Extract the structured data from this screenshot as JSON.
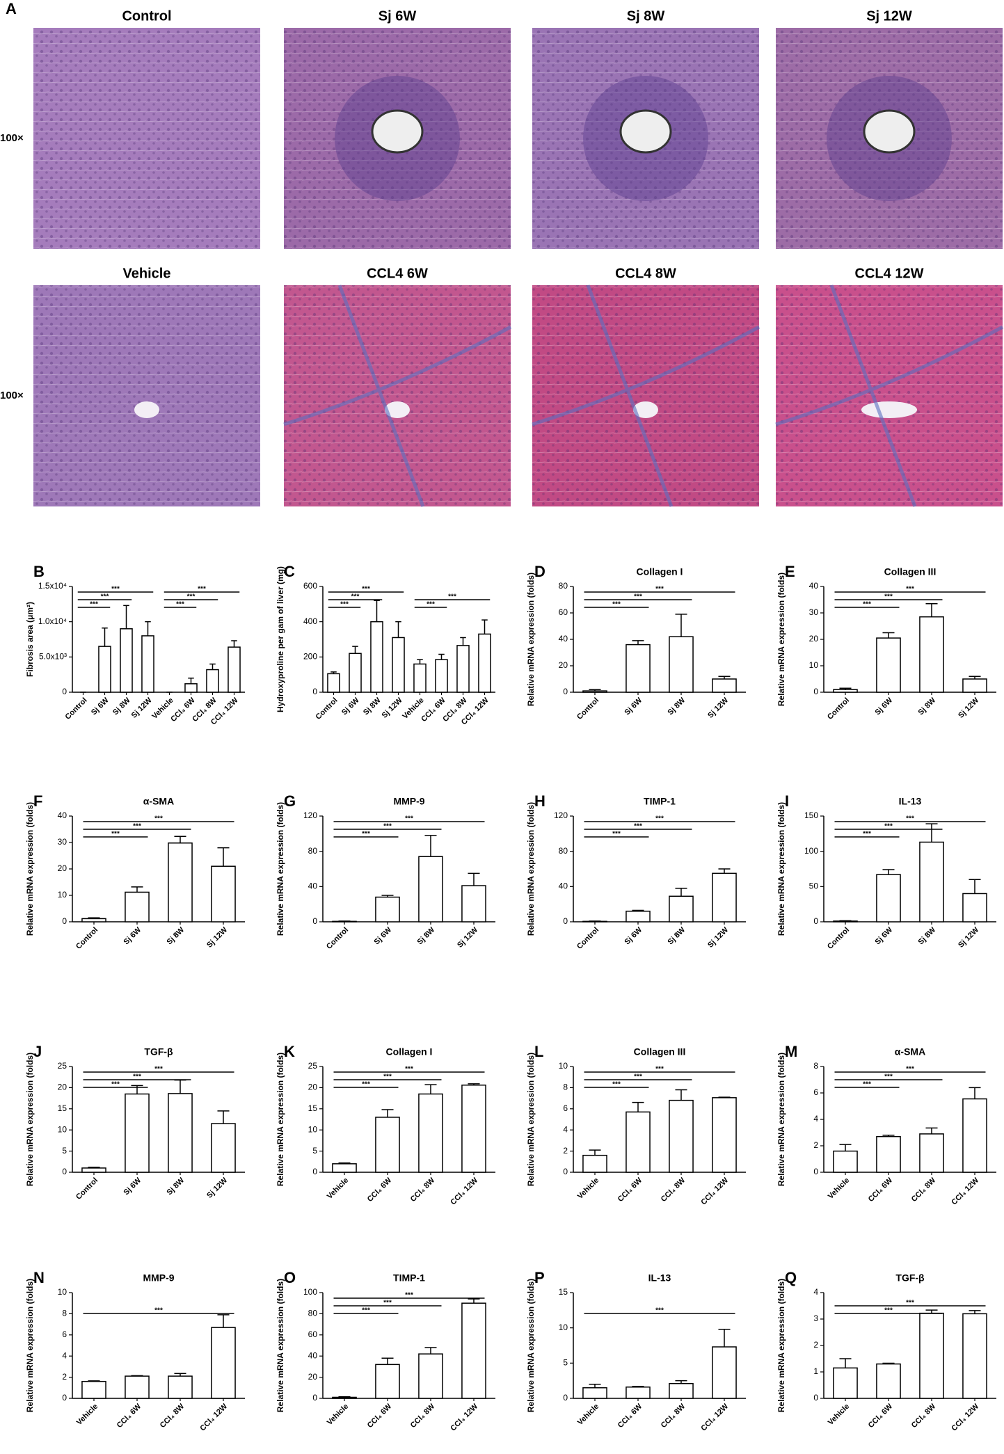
{
  "panel_a": {
    "panel": "A",
    "rows": [
      {
        "magnification": "100×",
        "images": [
          "Control",
          "Sj 6W",
          "Sj 8W",
          "Sj 12W"
        ]
      },
      {
        "magnification": "100×",
        "images": [
          "Vehicle",
          "CCL4 6W",
          "CCL4 8W",
          "CCL4 12W"
        ]
      }
    ]
  },
  "chart_data": [
    {
      "type": "bar",
      "panel": "B",
      "ylabel": "Fibrosis area (μm²)",
      "categories": [
        "Control",
        "Sj 6W",
        "Sj 8W",
        "Sj 12W",
        "Vehicle",
        "CCl₄ 6W",
        "CCl₄ 8W",
        "CCl₄ 12W"
      ],
      "values": [
        0,
        6500,
        9000,
        8000,
        0,
        1200,
        3200,
        6400
      ],
      "errors": [
        0,
        2600,
        3300,
        2000,
        0,
        800,
        800,
        900
      ],
      "ylim": [
        0,
        15000
      ],
      "yticks": [
        0,
        {
          "value": 5000,
          "label": "5.0x10³"
        },
        {
          "value": 10000,
          "label": "1.0x10⁴"
        },
        {
          "value": 15000,
          "label": "1.5x10⁴"
        }
      ],
      "significance": [
        {
          "from": 0,
          "to": 1,
          "label": "***"
        },
        {
          "from": 0,
          "to": 2,
          "label": "***"
        },
        {
          "from": 0,
          "to": 3,
          "label": "***"
        },
        {
          "from": 4,
          "to": 5,
          "label": "***"
        },
        {
          "from": 4,
          "to": 6,
          "label": "***"
        },
        {
          "from": 4,
          "to": 7,
          "label": "***"
        }
      ]
    },
    {
      "type": "bar",
      "panel": "C",
      "ylabel": "Hydroxyproline per gam of liver (mg)",
      "categories": [
        "Control",
        "Sj 6W",
        "Sj 8W",
        "Sj 12W",
        "Vehicle",
        "CCl₄ 6W",
        "CCl₄ 8W",
        "CCl₄ 12W"
      ],
      "values": [
        105,
        220,
        400,
        310,
        160,
        185,
        265,
        330
      ],
      "errors": [
        10,
        40,
        120,
        90,
        25,
        30,
        45,
        80
      ],
      "ylim": [
        0,
        600
      ],
      "yticks": [
        0,
        200,
        400,
        600
      ],
      "significance": [
        {
          "from": 0,
          "to": 1,
          "label": "***"
        },
        {
          "from": 0,
          "to": 2,
          "label": "***"
        },
        {
          "from": 0,
          "to": 3,
          "label": "***"
        },
        {
          "from": 4,
          "to": 5,
          "label": "***"
        },
        {
          "from": 4,
          "to": 7,
          "label": "***"
        }
      ]
    },
    {
      "type": "bar",
      "panel": "D",
      "title": "Collagen I",
      "ylabel": "Relative mRNA expression (folds)",
      "categories": [
        "Control",
        "Sj 6W",
        "Sj 8W",
        "Sj 12W"
      ],
      "values": [
        1,
        36,
        42,
        10
      ],
      "errors": [
        1,
        3,
        17,
        2
      ],
      "ylim": [
        0,
        80
      ],
      "yticks": [
        0,
        20,
        40,
        60,
        80
      ],
      "significance": [
        {
          "from": 0,
          "to": 1,
          "label": "***"
        },
        {
          "from": 0,
          "to": 2,
          "label": "***"
        },
        {
          "from": 0,
          "to": 3,
          "label": "***"
        }
      ]
    },
    {
      "type": "bar",
      "panel": "E",
      "title": "Collagen III",
      "ylabel": "Relative mRNA expression (folds)",
      "categories": [
        "Control",
        "Sj 6W",
        "Sj 8W",
        "Sj 12W"
      ],
      "values": [
        1,
        20.5,
        28.5,
        5
      ],
      "errors": [
        0.5,
        2,
        5,
        1
      ],
      "ylim": [
        0,
        40
      ],
      "yticks": [
        0,
        10,
        20,
        30,
        40
      ],
      "significance": [
        {
          "from": 0,
          "to": 1,
          "label": "***"
        },
        {
          "from": 0,
          "to": 2,
          "label": "***"
        },
        {
          "from": 0,
          "to": 3,
          "label": "***"
        }
      ]
    },
    {
      "type": "bar",
      "panel": "F",
      "title": "α-SMA",
      "ylabel": "Relative mRNA expression (folds)",
      "categories": [
        "Control",
        "Sj 6W",
        "Sj 8W",
        "Sj 12W"
      ],
      "values": [
        1.2,
        11.2,
        29.8,
        21
      ],
      "errors": [
        0.3,
        2,
        2.5,
        7
      ],
      "ylim": [
        0,
        40
      ],
      "yticks": [
        0,
        10,
        20,
        30,
        40
      ],
      "significance": [
        {
          "from": 0,
          "to": 1,
          "label": "***"
        },
        {
          "from": 0,
          "to": 2,
          "label": "***"
        },
        {
          "from": 0,
          "to": 3,
          "label": "***"
        }
      ]
    },
    {
      "type": "bar",
      "panel": "G",
      "title": "MMP-9",
      "ylabel": "Relative mRNA expression (folds)",
      "categories": [
        "Control",
        "Sj 6W",
        "Sj 8W",
        "Sj 12W"
      ],
      "values": [
        0.5,
        28,
        74,
        41
      ],
      "errors": [
        0.3,
        2,
        24,
        14
      ],
      "ylim": [
        0,
        120
      ],
      "yticks": [
        0,
        40,
        80,
        120
      ],
      "significance": [
        {
          "from": 0,
          "to": 1,
          "label": "***"
        },
        {
          "from": 0,
          "to": 2,
          "label": "***"
        },
        {
          "from": 0,
          "to": 3,
          "label": "***"
        }
      ]
    },
    {
      "type": "bar",
      "panel": "H",
      "title": "TIMP-1",
      "ylabel": "Relative mRNA expression (folds)",
      "categories": [
        "Control",
        "Sj 6W",
        "Sj 8W",
        "Sj 12W"
      ],
      "values": [
        0.5,
        12,
        29,
        55
      ],
      "errors": [
        0.3,
        1,
        9,
        5
      ],
      "ylim": [
        0,
        120
      ],
      "yticks": [
        0,
        40,
        80,
        120
      ],
      "significance": [
        {
          "from": 0,
          "to": 1,
          "label": "***"
        },
        {
          "from": 0,
          "to": 2,
          "label": "***"
        },
        {
          "from": 0,
          "to": 3,
          "label": "***"
        }
      ]
    },
    {
      "type": "bar",
      "panel": "I",
      "title": "IL-13",
      "ylabel": "Relative mRNA expression (folds)",
      "categories": [
        "Control",
        "Sj 6W",
        "Sj 8W",
        "Sj 12W"
      ],
      "values": [
        1,
        67,
        113,
        40
      ],
      "errors": [
        0.5,
        7,
        26,
        20
      ],
      "ylim": [
        0,
        150
      ],
      "yticks": [
        0,
        50,
        100,
        150
      ],
      "significance": [
        {
          "from": 0,
          "to": 1,
          "label": "***"
        },
        {
          "from": 0,
          "to": 2,
          "label": "***"
        },
        {
          "from": 0,
          "to": 3,
          "label": "***"
        }
      ]
    },
    {
      "type": "bar",
      "panel": "J",
      "title": "TGF-β",
      "ylabel": "Relative mRNA expression (folds)",
      "categories": [
        "Control",
        "Sj 6W",
        "Sj 8W",
        "Sj 12W"
      ],
      "values": [
        1,
        18.5,
        18.6,
        11.5
      ],
      "errors": [
        0.2,
        2,
        3.2,
        3
      ],
      "ylim": [
        0,
        25
      ],
      "yticks": [
        0,
        5,
        10,
        15,
        20,
        25
      ],
      "significance": [
        {
          "from": 0,
          "to": 1,
          "label": "***"
        },
        {
          "from": 0,
          "to": 2,
          "label": "***"
        },
        {
          "from": 0,
          "to": 3,
          "label": "***"
        }
      ]
    },
    {
      "type": "bar",
      "panel": "K",
      "title": "Collagen I",
      "ylabel": "Relative mRNA expression (folds)",
      "categories": [
        "Vehicle",
        "CCl₄ 6W",
        "CCl₄ 8W",
        "CCl₄ 12W"
      ],
      "values": [
        2,
        13,
        18.5,
        20.6
      ],
      "errors": [
        0.2,
        1.8,
        2.2,
        0.3
      ],
      "ylim": [
        0,
        25
      ],
      "yticks": [
        0,
        5,
        10,
        15,
        20,
        25
      ],
      "significance": [
        {
          "from": 0,
          "to": 1,
          "label": "***"
        },
        {
          "from": 0,
          "to": 2,
          "label": "***"
        },
        {
          "from": 0,
          "to": 3,
          "label": "***"
        }
      ]
    },
    {
      "type": "bar",
      "panel": "L",
      "title": "Collagen III",
      "ylabel": "Relative mRNA expression (folds)",
      "categories": [
        "Vehicle",
        "CCl₄ 6W",
        "CCl₄ 8W",
        "CCl₄ 12W"
      ],
      "values": [
        1.6,
        5.7,
        6.8,
        7.05
      ],
      "errors": [
        0.5,
        0.9,
        1,
        0.05
      ],
      "ylim": [
        0,
        10
      ],
      "yticks": [
        0,
        2,
        4,
        6,
        8,
        10
      ],
      "significance": [
        {
          "from": 0,
          "to": 1,
          "label": "***"
        },
        {
          "from": 0,
          "to": 2,
          "label": "***"
        },
        {
          "from": 0,
          "to": 3,
          "label": "***"
        }
      ]
    },
    {
      "type": "bar",
      "panel": "M",
      "title": "α-SMA",
      "ylabel": "Relative mRNA expression (folds)",
      "categories": [
        "Vehicle",
        "CCl₄ 6W",
        "CCl₄ 8W",
        "CCl₄ 12W"
      ],
      "values": [
        1.6,
        2.7,
        2.9,
        5.55
      ],
      "errors": [
        0.5,
        0.1,
        0.45,
        0.85
      ],
      "ylim": [
        0,
        8
      ],
      "yticks": [
        0,
        2,
        4,
        6,
        8
      ],
      "significance": [
        {
          "from": 0,
          "to": 1,
          "label": "***"
        },
        {
          "from": 0,
          "to": 2,
          "label": "***"
        },
        {
          "from": 0,
          "to": 3,
          "label": "***"
        }
      ]
    },
    {
      "type": "bar",
      "panel": "N",
      "title": "MMP-9",
      "ylabel": "Relative mRNA expression (folds)",
      "categories": [
        "Vehicle",
        "CCl₄ 6W",
        "CCl₄ 8W",
        "CCl₄ 12W"
      ],
      "values": [
        1.6,
        2.1,
        2.1,
        6.7
      ],
      "errors": [
        0.05,
        0.05,
        0.25,
        1.2
      ],
      "ylim": [
        0,
        10
      ],
      "yticks": [
        0,
        2,
        4,
        6,
        8,
        10
      ],
      "significance": [
        {
          "from": 0,
          "to": 3,
          "label": "***"
        }
      ]
    },
    {
      "type": "bar",
      "panel": "O",
      "title": "TIMP-1",
      "ylabel": "Relative mRNA expression (folds)",
      "categories": [
        "Vehicle",
        "CCl₄ 6W",
        "CCl₄ 8W",
        "CCl₄ 12W"
      ],
      "values": [
        1,
        32,
        42,
        90
      ],
      "errors": [
        0.5,
        6,
        6,
        4
      ],
      "ylim": [
        0,
        100
      ],
      "yticks": [
        0,
        20,
        40,
        60,
        80,
        100
      ],
      "significance": [
        {
          "from": 0,
          "to": 1,
          "label": "***"
        },
        {
          "from": 0,
          "to": 2,
          "label": "***"
        },
        {
          "from": 0,
          "to": 3,
          "label": "***"
        }
      ]
    },
    {
      "type": "bar",
      "panel": "P",
      "title": "IL-13",
      "ylabel": "Relative mRNA expression (folds)",
      "categories": [
        "Vehicle",
        "CCl₄ 6W",
        "CCl₄ 8W",
        "CCl₄ 12W"
      ],
      "values": [
        1.5,
        1.6,
        2.1,
        7.3
      ],
      "errors": [
        0.5,
        0.1,
        0.4,
        2.5
      ],
      "ylim": [
        0,
        15
      ],
      "yticks": [
        0,
        5,
        10,
        15
      ],
      "significance": [
        {
          "from": 0,
          "to": 3,
          "label": "***"
        }
      ]
    },
    {
      "type": "bar",
      "panel": "Q",
      "title": "TGF-β",
      "ylabel": "Relative mRNA expression (folds)",
      "categories": [
        "Vehicle",
        "CCl₄ 6W",
        "CCl₄ 8W",
        "CCl₄ 12W"
      ],
      "values": [
        1.15,
        1.3,
        3.22,
        3.2
      ],
      "errors": [
        0.35,
        0.03,
        0.12,
        0.12
      ],
      "ylim": [
        0,
        4
      ],
      "yticks": [
        0,
        1,
        2,
        3,
        4
      ],
      "significance": [
        {
          "from": 0,
          "to": 2,
          "label": "***"
        },
        {
          "from": 0,
          "to": 3,
          "label": "***"
        }
      ]
    }
  ]
}
